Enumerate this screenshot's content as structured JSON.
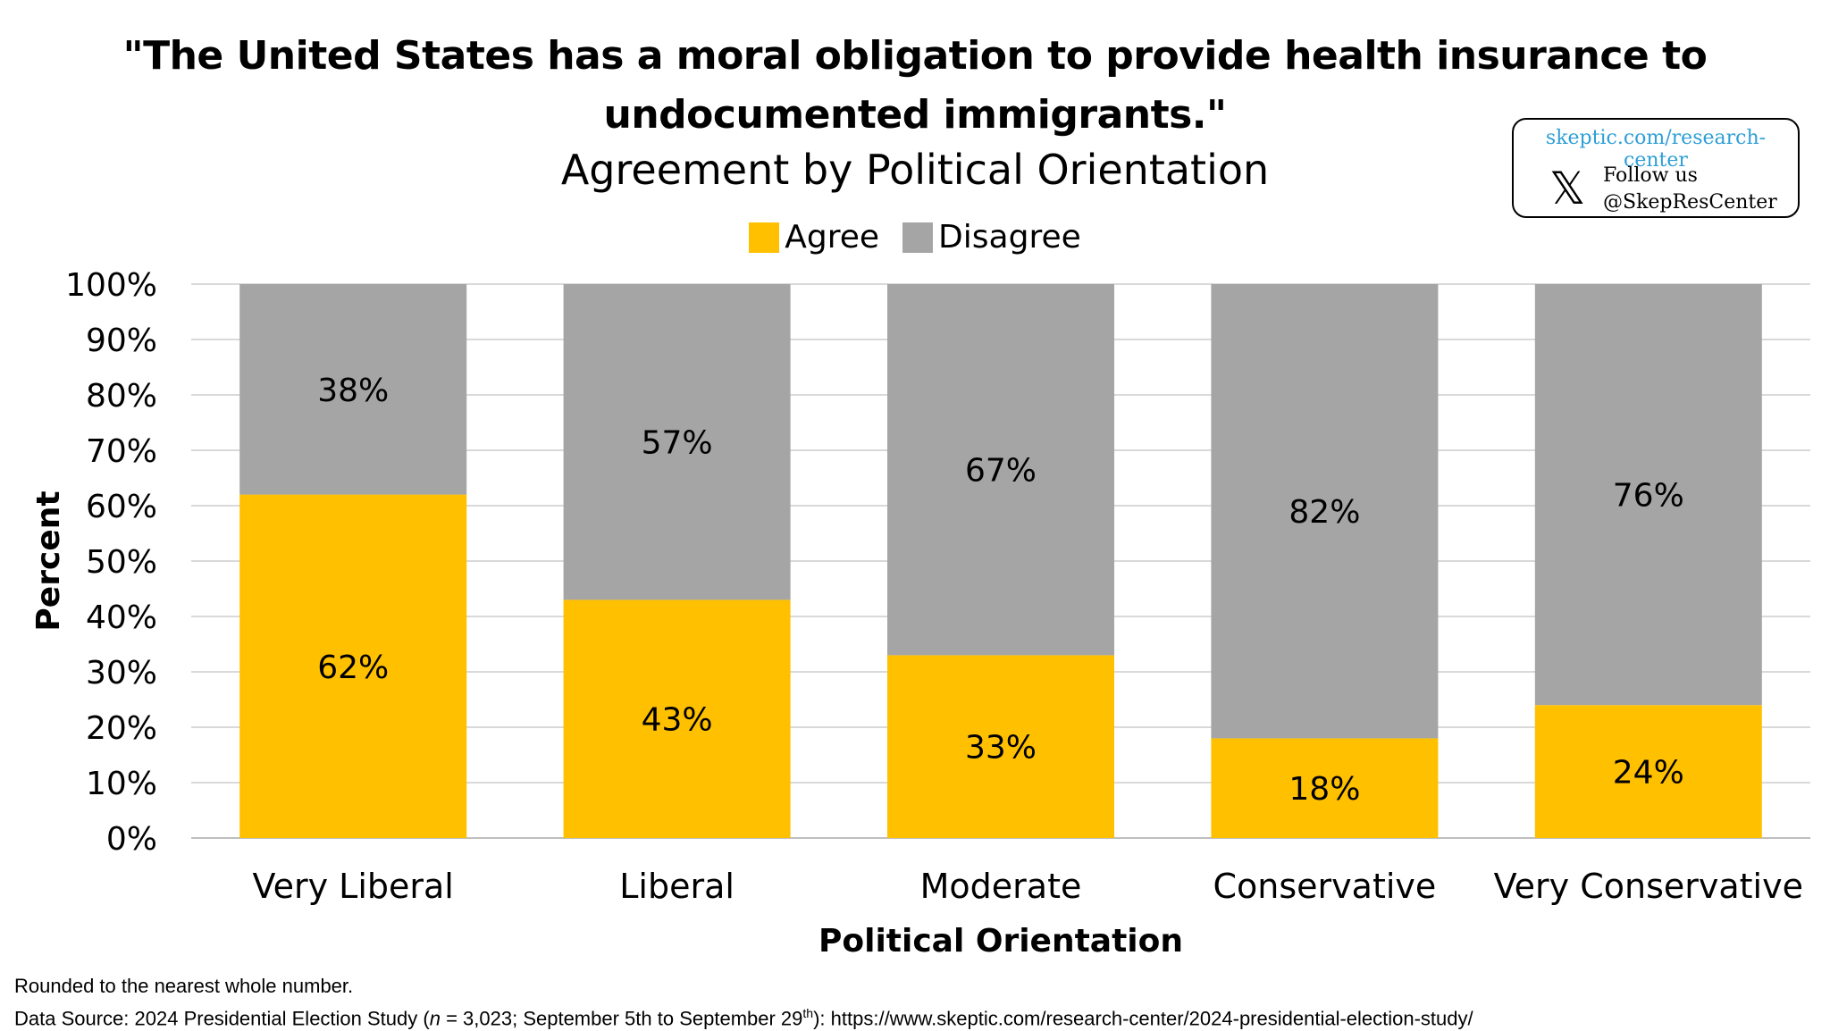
{
  "chart_data": {
    "type": "bar",
    "stacked": true,
    "title_line1": "\"The United States has a moral obligation to provide health insurance to",
    "title_line2": "undocumented immigrants.\"",
    "subtitle": "Agreement by Political Orientation",
    "xlabel": "Political Orientation",
    "ylabel": "Percent",
    "ylim": [
      0,
      100
    ],
    "yticks": [
      "0%",
      "10%",
      "20%",
      "30%",
      "40%",
      "50%",
      "60%",
      "70%",
      "80%",
      "90%",
      "100%"
    ],
    "grid": true,
    "legend_position": "top-center",
    "categories": [
      "Very Liberal",
      "Liberal",
      "Moderate",
      "Conservative",
      "Very Conservative"
    ],
    "series": [
      {
        "name": "Agree",
        "color": "#ffc000",
        "values": [
          62,
          43,
          33,
          18,
          24
        ],
        "labels": [
          "62%",
          "43%",
          "33%",
          "18%",
          "24%"
        ]
      },
      {
        "name": "Disagree",
        "color": "#a5a5a5",
        "values": [
          38,
          57,
          67,
          82,
          76
        ],
        "labels": [
          "38%",
          "57%",
          "67%",
          "82%",
          "76%"
        ]
      }
    ]
  },
  "badge": {
    "url": "skeptic.com/research-center",
    "x_icon": "x-logo-icon",
    "follow": "Follow us",
    "handle": "@SkepResCenter"
  },
  "footnotes": {
    "line1": "Rounded to the nearest whole number.",
    "line2_pre": "Data Source: 2024 Presidential Election Study (",
    "line2_n": "n",
    "line2_mid": " = 3,023; September 5th to September 29",
    "line2_sup": "th",
    "line2_post": "): https://www.skeptic.com/research-center/2024-presidential-election-study/"
  }
}
